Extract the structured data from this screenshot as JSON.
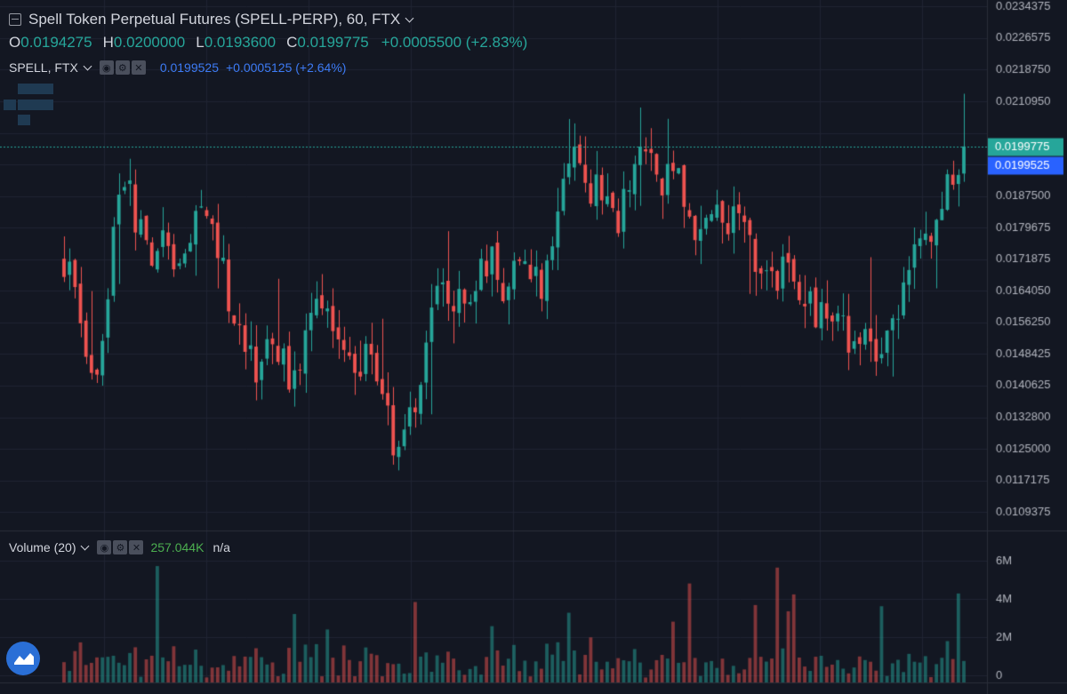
{
  "header": {
    "title": "Spell Token Perpetual Futures (SPELL-PERP), 60, FTX",
    "ohlc": {
      "o_label": "O",
      "o": "0.0194275",
      "h_label": "H",
      "h": "0.0200000",
      "l_label": "L",
      "l": "0.0193600",
      "c_label": "C",
      "c": "0.0199775",
      "change": "+0.0005500 (+2.83%)"
    }
  },
  "compare": {
    "label": "SPELL, FTX",
    "value": "0.0199525",
    "change": "+0.0005125 (+2.64%)"
  },
  "volume_legend": {
    "label": "Volume (20)",
    "value": "257.044K",
    "ma": "n/a"
  },
  "colors": {
    "up": "#26a69a",
    "down": "#ef5350",
    "background": "#131722",
    "grid": "#1f2433",
    "price_tag": "#26a69a",
    "compare_tag": "#2962ff"
  },
  "chart_data": {
    "type": "candlestick",
    "price_axis": {
      "ticks": [
        "0.0234375",
        "0.0226575",
        "0.0218750",
        "0.0210950",
        "0.0203125",
        "0.0195325",
        "0.0187500",
        "0.0179675",
        "0.0171875",
        "0.0164050",
        "0.0156250",
        "0.0148425",
        "0.0140625",
        "0.0132800",
        "0.0125000",
        "0.0117175",
        "0.0109375"
      ],
      "range": [
        0.0105,
        0.0236
      ],
      "last_price": "0.0199775",
      "compare_price": "0.0199525"
    },
    "volume_axis": {
      "ticks": [
        "6M",
        "4M",
        "2M",
        "0"
      ],
      "range": [
        0,
        7000000
      ]
    },
    "candles_count": 165,
    "close_path": [
      0.0172,
      0.0168,
      0.0158,
      0.0149,
      0.0141,
      0.0152,
      0.0165,
      0.0184,
      0.0195,
      0.0187,
      0.018,
      0.0176,
      0.0172,
      0.0175,
      0.0177,
      0.017,
      0.0166,
      0.0175,
      0.0183,
      0.018,
      0.0177,
      0.0172,
      0.0165,
      0.0158,
      0.0152,
      0.0148,
      0.0145,
      0.015,
      0.0155,
      0.015,
      0.0145,
      0.0143,
      0.0147,
      0.0152,
      0.0158,
      0.0162,
      0.0158,
      0.015,
      0.0148,
      0.015,
      0.0145,
      0.0148,
      0.0146,
      0.014,
      0.0132,
      0.012,
      0.0128,
      0.0135,
      0.014,
      0.0148,
      0.0158,
      0.0165,
      0.016,
      0.0158,
      0.0162,
      0.016,
      0.0165,
      0.017,
      0.0174,
      0.017,
      0.0162,
      0.0168,
      0.0172,
      0.017,
      0.0168,
      0.0166,
      0.0175,
      0.0185,
      0.0192,
      0.0195,
      0.02,
      0.0188,
      0.0192,
      0.0188,
      0.0185,
      0.0182,
      0.0186,
      0.0194,
      0.0197,
      0.02,
      0.0196,
      0.019,
      0.0194,
      0.0192,
      0.0186,
      0.018,
      0.0178,
      0.0182,
      0.0185,
      0.018,
      0.0178,
      0.0182,
      0.018,
      0.0176,
      0.017,
      0.0172,
      0.017,
      0.0168,
      0.017,
      0.0167,
      0.0165,
      0.016,
      0.0158,
      0.0158,
      0.0156,
      0.0157,
      0.0154,
      0.0152,
      0.0153,
      0.015,
      0.0147,
      0.015,
      0.0152,
      0.0158,
      0.0168,
      0.0172,
      0.0175,
      0.0178,
      0.018,
      0.0186,
      0.019,
      0.0196,
      0.0199775
    ],
    "volume_note": "volume bars colored by candle direction"
  }
}
